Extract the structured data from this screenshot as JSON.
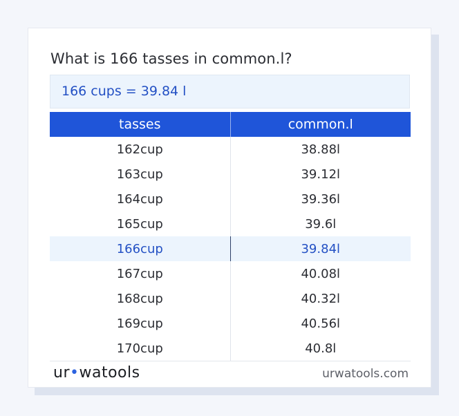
{
  "question": "What is 166 tasses in common.l?",
  "result": "166 cups = 39.84 l",
  "table": {
    "headers": [
      "tasses",
      "common.l"
    ],
    "rows": [
      [
        "162cup",
        "38.88l"
      ],
      [
        "163cup",
        "39.12l"
      ],
      [
        "164cup",
        "39.36l"
      ],
      [
        "165cup",
        "39.6l"
      ],
      [
        "166cup",
        "39.84l"
      ],
      [
        "167cup",
        "40.08l"
      ],
      [
        "168cup",
        "40.32l"
      ],
      [
        "169cup",
        "40.56l"
      ],
      [
        "170cup",
        "40.8l"
      ]
    ],
    "highlighted_row": 4
  },
  "footer": {
    "logo_text": "urwatools",
    "site": "urwatools.com"
  },
  "colors": {
    "header_bg": "#1f55d9",
    "accent": "#2350c4",
    "highlight_bg": "#ecf4fd"
  }
}
